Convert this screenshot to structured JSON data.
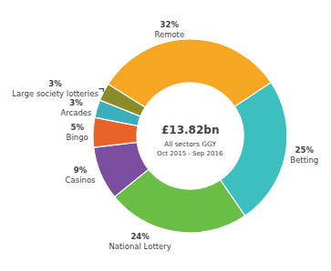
{
  "chart_data": {
    "type": "pie",
    "title": "£13.82bn",
    "subtitle": "All sectors GGY",
    "annotations": [
      "Oct 2015 - Sep 2016"
    ],
    "categories": [
      "Remote",
      "Betting",
      "National Lottery",
      "Casinos",
      "Bingo",
      "Arcades",
      "Large society lotteries"
    ],
    "values": [
      32,
      25,
      24,
      9,
      5,
      3,
      3
    ],
    "value_labels": [
      "32%",
      "25%",
      "24%",
      "9%",
      "5%",
      "3%",
      "3%"
    ],
    "colors": [
      "#F5A623",
      "#3DBFBF",
      "#6ABD45",
      "#7B4EA0",
      "#E8622A",
      "#3AAFBE",
      "#8B8B2A"
    ],
    "data_labels": true,
    "legend": false
  }
}
